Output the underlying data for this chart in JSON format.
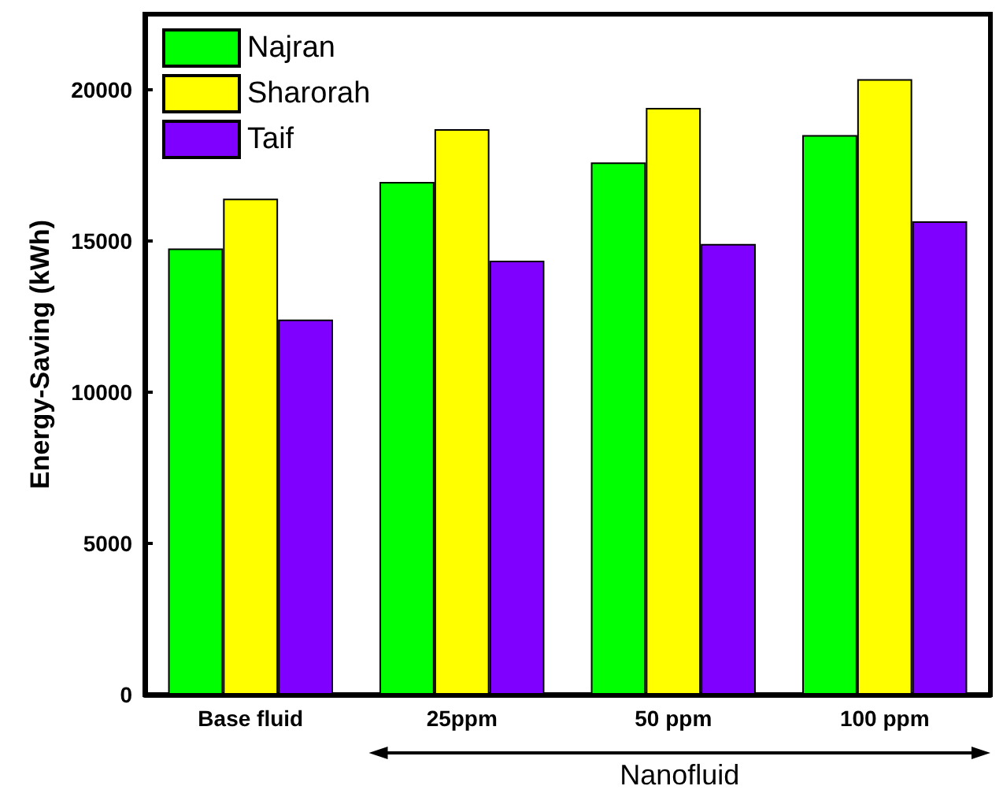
{
  "chart_data": {
    "type": "bar",
    "ylabel": "Energy-Saving (kWh)",
    "xlabel": "Nanofluid",
    "categories": [
      "Base fluid",
      "25ppm",
      "50 ppm",
      "100 ppm"
    ],
    "series": [
      {
        "name": "Najran",
        "color": "#00ff00",
        "values": [
          14750,
          16950,
          17600,
          18500
        ]
      },
      {
        "name": "Sharorah",
        "color": "#ffff00",
        "values": [
          16400,
          18700,
          19400,
          20350
        ]
      },
      {
        "name": "Taif",
        "color": "#8000ff",
        "values": [
          12400,
          14350,
          14900,
          15650
        ]
      }
    ],
    "ylim": [
      0,
      22500
    ],
    "yticks": [
      0,
      5000,
      10000,
      15000,
      20000
    ],
    "grid": false,
    "legend": "top left"
  }
}
